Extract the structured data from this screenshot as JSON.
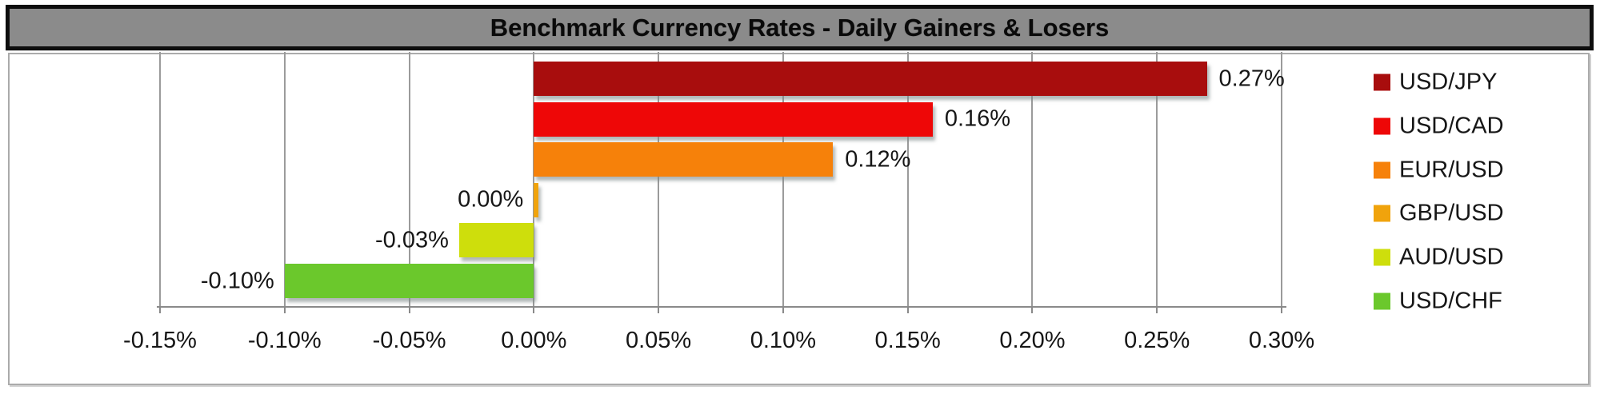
{
  "title": "Benchmark Currency Rates - Daily Gainers & Losers",
  "chart_data": {
    "type": "bar",
    "orientation": "horizontal",
    "title": "Benchmark Currency Rates - Daily Gainers & Losers",
    "categories": [
      "USD/JPY",
      "USD/CAD",
      "EUR/USD",
      "GBP/USD",
      "AUD/USD",
      "USD/CHF"
    ],
    "values": [
      0.27,
      0.16,
      0.12,
      0.0,
      -0.03,
      -0.1
    ],
    "data_labels": [
      "0.27%",
      "0.16%",
      "0.12%",
      "0.00%",
      "-0.03%",
      "-0.10%"
    ],
    "series_colors": [
      "#a80d0d",
      "#ee0707",
      "#f6810a",
      "#f0a30c",
      "#cede0c",
      "#6bc82c"
    ],
    "xlabel": "",
    "ylabel": "",
    "x_axis": {
      "min": -0.15,
      "max": 0.3,
      "tick_step": 0.05,
      "tick_labels": [
        "-0.15%",
        "-0.10%",
        "-0.05%",
        "0.00%",
        "0.05%",
        "0.10%",
        "0.15%",
        "0.20%",
        "0.25%",
        "0.30%"
      ]
    },
    "grid": true,
    "legend": {
      "position": "right",
      "entries": [
        "USD/JPY",
        "USD/CAD",
        "EUR/USD",
        "GBP/USD",
        "AUD/USD",
        "USD/CHF"
      ]
    }
  },
  "style_colors": {
    "title_bar_bg": "#8b8b8b",
    "title_bar_border": "#0e0e0e",
    "chart_frame_border": "#ababab",
    "gridline": "#9b9b9b",
    "axis_line": "#8a8a8a",
    "text": "#161616"
  }
}
